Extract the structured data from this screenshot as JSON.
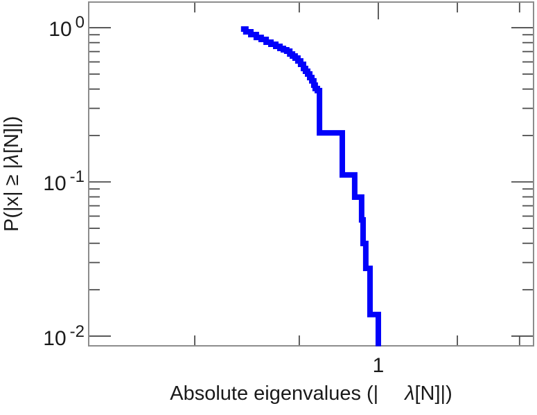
{
  "chart_data": {
    "type": "line",
    "subtype": "ccdf-step",
    "title": "",
    "xlabel": "Absolute eigenvalues (|     λ[N]|)",
    "ylabel": "P(|x| ≥ |λ[N]|)",
    "xlabel_parts": {
      "pre": "Absolute eigenvalues (|",
      "lambda": "λ",
      "post": "[N]|)"
    },
    "ylabel_parts": {
      "pre": "P(|x| ≥ |",
      "lambda": "λ",
      "post": "[N]|)"
    },
    "xscale": "log",
    "yscale": "log",
    "xlim": [
      0.0789,
      3.9
    ],
    "ylim": [
      0.00865,
      1.466
    ],
    "grid": false,
    "legend": null,
    "frame_color": "#8c8c8c",
    "tick_color": "#4d4d4d",
    "x_major_ticks": [
      {
        "value": 1,
        "label": "1"
      }
    ],
    "x_minor_ticks": [
      0.2,
      0.5,
      2,
      3.45
    ],
    "y_major_ticks": [
      {
        "value": 1,
        "base": "10",
        "exp": "0"
      },
      {
        "value": 0.1,
        "base": "10",
        "exp": "-1"
      },
      {
        "value": 0.01,
        "base": "10",
        "exp": "-2"
      }
    ],
    "y_minor_ticks": [
      0.9,
      0.8,
      0.7,
      0.6,
      0.5,
      0.4,
      0.3,
      0.2,
      0.09,
      0.08,
      0.07,
      0.06,
      0.05,
      0.04,
      0.03,
      0.02
    ],
    "series": [
      {
        "name": "eigenvalue-ccdf",
        "color": "#0202fa",
        "line_width": 8,
        "step": "HV",
        "points": [
          [
            0.3,
            0.98
          ],
          [
            0.313,
            0.94
          ],
          [
            0.327,
            0.902
          ],
          [
            0.343,
            0.865
          ],
          [
            0.358,
            0.839
          ],
          [
            0.374,
            0.805
          ],
          [
            0.39,
            0.781
          ],
          [
            0.407,
            0.757
          ],
          [
            0.422,
            0.734
          ],
          [
            0.435,
            0.719
          ],
          [
            0.448,
            0.704
          ],
          [
            0.46,
            0.675
          ],
          [
            0.471,
            0.655
          ],
          [
            0.482,
            0.635
          ],
          [
            0.494,
            0.609
          ],
          [
            0.506,
            0.579
          ],
          [
            0.519,
            0.544
          ],
          [
            0.528,
            0.522
          ],
          [
            0.538,
            0.501
          ],
          [
            0.548,
            0.475
          ],
          [
            0.558,
            0.452
          ],
          [
            0.568,
            0.424
          ],
          [
            0.575,
            0.403
          ],
          [
            0.586,
            0.391
          ],
          [
            0.597,
            0.375
          ],
          [
            0.597,
            0.208
          ],
          [
            0.729,
            0.2
          ],
          [
            0.729,
            0.111
          ],
          [
            0.813,
            0.105
          ],
          [
            0.813,
            0.0797
          ],
          [
            0.864,
            0.0757
          ],
          [
            0.864,
            0.0567
          ],
          [
            0.875,
            0.0544
          ],
          [
            0.875,
            0.0399
          ],
          [
            0.896,
            0.0383
          ],
          [
            0.896,
            0.0275
          ],
          [
            0.93,
            0.0264
          ],
          [
            0.93,
            0.0138
          ],
          [
            1.0,
            0.0131
          ],
          [
            1.0,
            0.0086
          ]
        ]
      }
    ]
  }
}
